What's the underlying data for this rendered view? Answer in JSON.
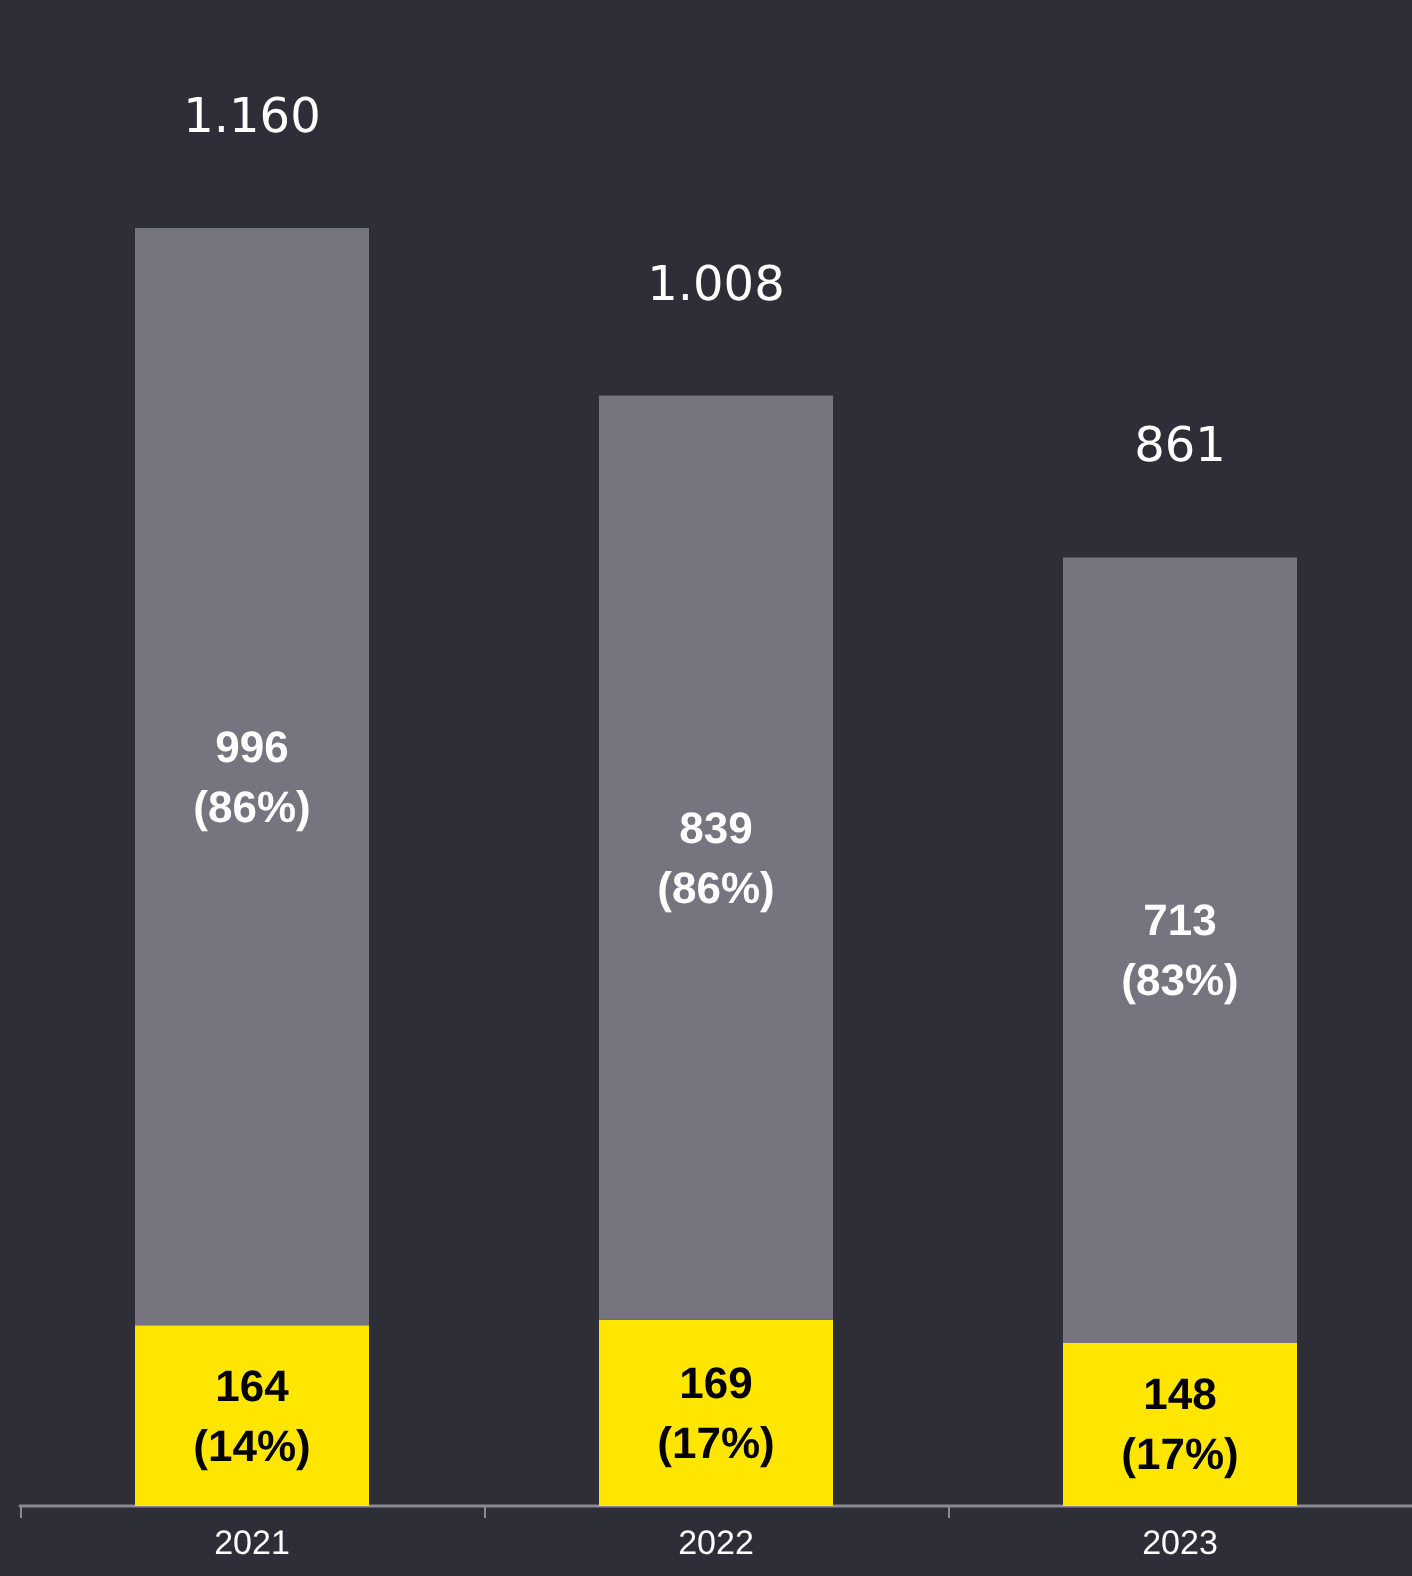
{
  "chart_data": {
    "type": "bar",
    "stacked": true,
    "categories": [
      "2021",
      "2022",
      "2023"
    ],
    "series": [
      {
        "color": "#ffe600",
        "values": [
          164,
          169,
          148
        ],
        "value_labels": [
          "164\n(14%)",
          "169\n(17%)",
          "148\n(17%)"
        ]
      },
      {
        "color": "#75747f",
        "values": [
          996,
          839,
          713
        ],
        "value_labels": [
          "996\n(86%)",
          "839\n(86%)",
          "713\n(83%)"
        ]
      }
    ],
    "totals": [
      "1.160",
      "1.008",
      "861"
    ]
  }
}
